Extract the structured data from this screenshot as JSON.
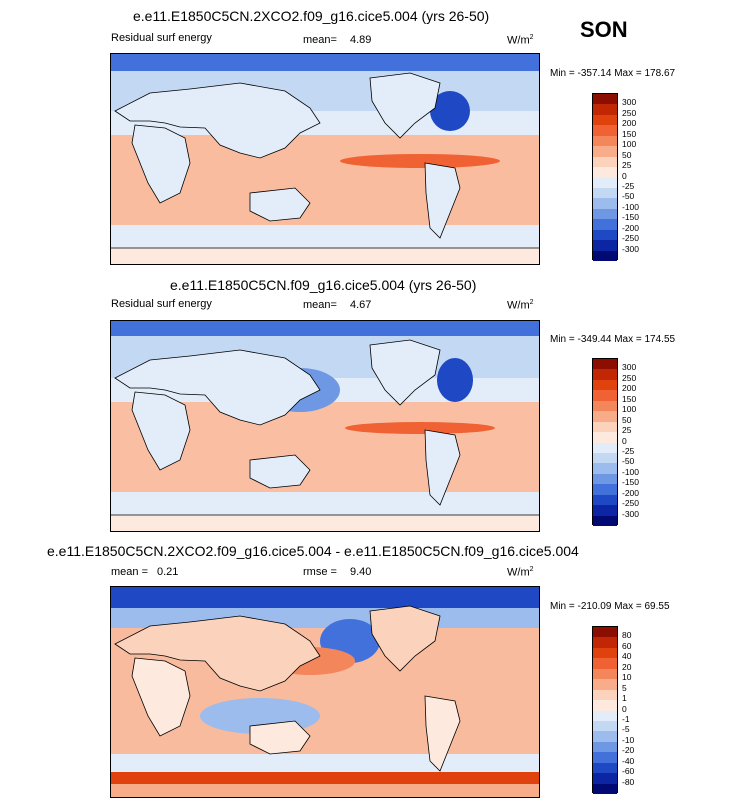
{
  "season": "SON",
  "panels": [
    {
      "title": "e.e11.E1850C5CN.2XCO2.f09_g16.cice5.004 (yrs 26-50)",
      "left_label": "Residual surf energy",
      "stat_label": "mean=",
      "stat_value": "4.89",
      "unit_base": "W/m",
      "unit_exp": "2",
      "minmax": "Min = -357.14 Max = 178.67",
      "levels": [
        "300",
        "250",
        "200",
        "150",
        "100",
        "50",
        "25",
        "0",
        "-25",
        "-50",
        "-100",
        "-150",
        "-200",
        "-250",
        "-300"
      ]
    },
    {
      "title": "e.e11.E1850C5CN.f09_g16.cice5.004 (yrs 26-50)",
      "left_label": "Residual surf energy",
      "stat_label": "mean=",
      "stat_value": "4.67",
      "unit_base": "W/m",
      "unit_exp": "2",
      "minmax": "Min = -349.44 Max = 174.55",
      "levels": [
        "300",
        "250",
        "200",
        "150",
        "100",
        "50",
        "25",
        "0",
        "-25",
        "-50",
        "-100",
        "-150",
        "-200",
        "-250",
        "-300"
      ]
    },
    {
      "title": "e.e11.E1850C5CN.2XCO2.f09_g16.cice5.004 - e.e11.E1850C5CN.f09_g16.cice5.004",
      "mean_label": "mean =",
      "mean_value": "0.21",
      "rmse_label": "rmse =",
      "rmse_value": "9.40",
      "unit_base": "W/m",
      "unit_exp": "2",
      "minmax": "Min = -210.09 Max = 69.55",
      "levels": [
        "80",
        "60",
        "40",
        "20",
        "10",
        "5",
        "1",
        "0",
        "-1",
        "-5",
        "-10",
        "-20",
        "-40",
        "-60",
        "-80"
      ]
    }
  ],
  "colorbar_colors": [
    "#8b0e00",
    "#c12705",
    "#e0420e",
    "#f06234",
    "#f4865c",
    "#f8ac8a",
    "#fbd2bb",
    "#fde9dd",
    "#e3edf9",
    "#c3d8f3",
    "#9bbcec",
    "#6e98e3",
    "#4371db",
    "#1f48c5",
    "#0b25a3",
    "#000a72"
  ]
}
